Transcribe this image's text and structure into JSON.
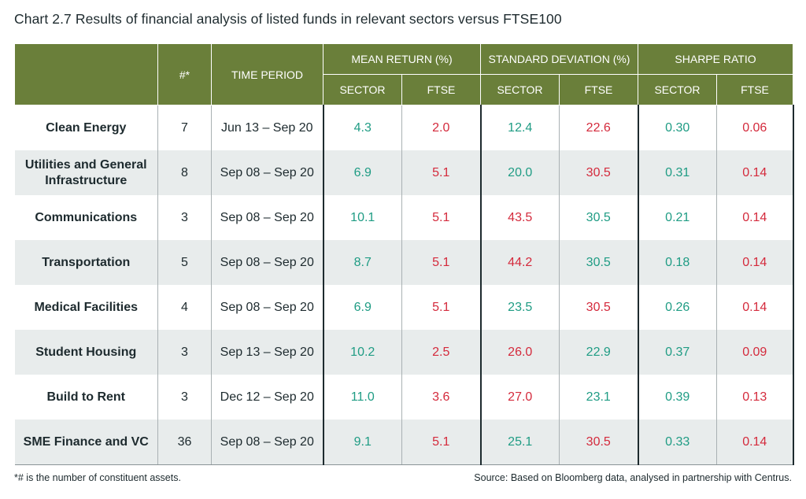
{
  "title": "Chart 2.7 Results of financial analysis of listed funds in relevant sectors versus FTSE100",
  "colors": {
    "header_bg": "#6a7f3a",
    "positive": "#1f9c84",
    "negative": "#d42a3c",
    "stripe": "#e8ecec"
  },
  "header": {
    "count": "#*",
    "time_period": "TIME PERIOD",
    "groups": [
      "MEAN RETURN (%)",
      "STANDARD DEVIATION (%)",
      "SHARPE RATIO"
    ],
    "sub": [
      "SECTOR",
      "FTSE",
      "SECTOR",
      "FTSE",
      "SECTOR",
      "FTSE"
    ]
  },
  "rows": [
    {
      "sector": "Clean Energy",
      "count": "7",
      "period": "Jun 13 – Sep 20",
      "values": [
        {
          "v": "4.3",
          "c": "pos"
        },
        {
          "v": "2.0",
          "c": "neg"
        },
        {
          "v": "12.4",
          "c": "pos"
        },
        {
          "v": "22.6",
          "c": "neg"
        },
        {
          "v": "0.30",
          "c": "pos"
        },
        {
          "v": "0.06",
          "c": "neg"
        }
      ]
    },
    {
      "sector": "Utilities and General Infrastructure",
      "count": "8",
      "period": "Sep 08 – Sep 20",
      "values": [
        {
          "v": "6.9",
          "c": "pos"
        },
        {
          "v": "5.1",
          "c": "neg"
        },
        {
          "v": "20.0",
          "c": "pos"
        },
        {
          "v": "30.5",
          "c": "neg"
        },
        {
          "v": "0.31",
          "c": "pos"
        },
        {
          "v": "0.14",
          "c": "neg"
        }
      ]
    },
    {
      "sector": "Communications",
      "count": "3",
      "period": "Sep 08 – Sep 20",
      "values": [
        {
          "v": "10.1",
          "c": "pos"
        },
        {
          "v": "5.1",
          "c": "neg"
        },
        {
          "v": "43.5",
          "c": "neg"
        },
        {
          "v": "30.5",
          "c": "pos"
        },
        {
          "v": "0.21",
          "c": "pos"
        },
        {
          "v": "0.14",
          "c": "neg"
        }
      ]
    },
    {
      "sector": "Transportation",
      "count": "5",
      "period": "Sep 08 – Sep 20",
      "values": [
        {
          "v": "8.7",
          "c": "pos"
        },
        {
          "v": "5.1",
          "c": "neg"
        },
        {
          "v": "44.2",
          "c": "neg"
        },
        {
          "v": "30.5",
          "c": "pos"
        },
        {
          "v": "0.18",
          "c": "pos"
        },
        {
          "v": "0.14",
          "c": "neg"
        }
      ]
    },
    {
      "sector": "Medical Facilities",
      "count": "4",
      "period": "Sep 08 – Sep 20",
      "values": [
        {
          "v": "6.9",
          "c": "pos"
        },
        {
          "v": "5.1",
          "c": "neg"
        },
        {
          "v": "23.5",
          "c": "pos"
        },
        {
          "v": "30.5",
          "c": "neg"
        },
        {
          "v": "0.26",
          "c": "pos"
        },
        {
          "v": "0.14",
          "c": "neg"
        }
      ]
    },
    {
      "sector": "Student Housing",
      "count": "3",
      "period": "Sep 13 – Sep 20",
      "values": [
        {
          "v": "10.2",
          "c": "pos"
        },
        {
          "v": "2.5",
          "c": "neg"
        },
        {
          "v": "26.0",
          "c": "neg"
        },
        {
          "v": "22.9",
          "c": "pos"
        },
        {
          "v": "0.37",
          "c": "pos"
        },
        {
          "v": "0.09",
          "c": "neg"
        }
      ]
    },
    {
      "sector": "Build to Rent",
      "count": "3",
      "period": "Dec 12 – Sep 20",
      "values": [
        {
          "v": "11.0",
          "c": "pos"
        },
        {
          "v": "3.6",
          "c": "neg"
        },
        {
          "v": "27.0",
          "c": "neg"
        },
        {
          "v": "23.1",
          "c": "pos"
        },
        {
          "v": "0.39",
          "c": "pos"
        },
        {
          "v": "0.13",
          "c": "neg"
        }
      ]
    },
    {
      "sector": "SME Finance and VC",
      "count": "36",
      "period": "Sep 08 – Sep 20",
      "values": [
        {
          "v": "9.1",
          "c": "pos"
        },
        {
          "v": "5.1",
          "c": "neg"
        },
        {
          "v": "25.1",
          "c": "pos"
        },
        {
          "v": "30.5",
          "c": "neg"
        },
        {
          "v": "0.33",
          "c": "pos"
        },
        {
          "v": "0.14",
          "c": "neg"
        }
      ]
    }
  ],
  "footnote": "*# is the number of constituent assets.",
  "source": "Source: Based on Bloomberg data, analysed in partnership with Centrus."
}
